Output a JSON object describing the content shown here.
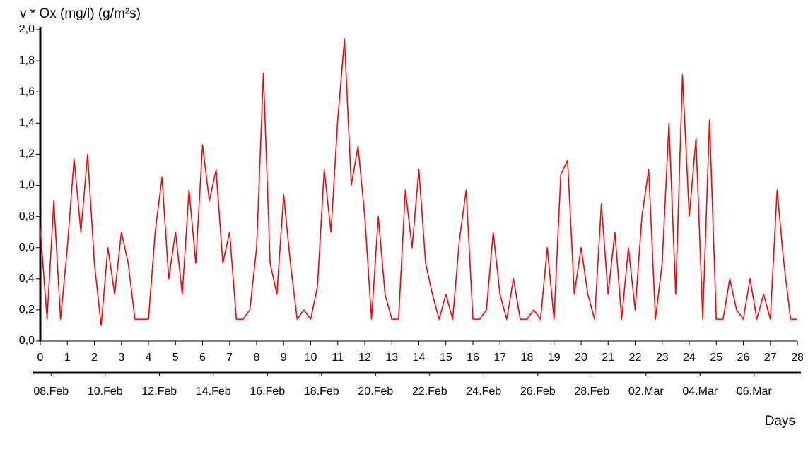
{
  "chart_data": {
    "type": "line",
    "y_label": "v * Ox (mg/l) (g/m²s)",
    "x_label": "Days",
    "xlim": [
      0,
      28
    ],
    "xticks": [
      0,
      1,
      2,
      3,
      4,
      5,
      6,
      7,
      8,
      9,
      10,
      11,
      12,
      13,
      14,
      15,
      16,
      17,
      18,
      19,
      20,
      21,
      22,
      23,
      24,
      25,
      26,
      27,
      28
    ],
    "ylim": [
      0,
      2.0
    ],
    "yticks": [
      {
        "value": 0,
        "label": "0,0"
      },
      {
        "value": 0.2,
        "label": "0,2"
      },
      {
        "value": 0.4,
        "label": "0,4"
      },
      {
        "value": 0.6,
        "label": "0,6"
      },
      {
        "value": 0.8,
        "label": "0,8"
      },
      {
        "value": 1.0,
        "label": "1,0"
      },
      {
        "value": 1.2,
        "label": "1,2"
      },
      {
        "value": 1.4,
        "label": "1,4"
      },
      {
        "value": 1.6,
        "label": "1,6"
      },
      {
        "value": 1.8,
        "label": "1,8"
      },
      {
        "value": 2.0,
        "label": "2,0"
      }
    ],
    "date_ticks": [
      {
        "value": 0.4,
        "label": "08.Feb"
      },
      {
        "value": 2.4,
        "label": "10.Feb"
      },
      {
        "value": 4.4,
        "label": "12.Feb"
      },
      {
        "value": 6.4,
        "label": "14.Feb"
      },
      {
        "value": 8.4,
        "label": "16.Feb"
      },
      {
        "value": 10.4,
        "label": "18.Feb"
      },
      {
        "value": 12.4,
        "label": "20.Feb"
      },
      {
        "value": 14.4,
        "label": "22.Feb"
      },
      {
        "value": 16.4,
        "label": "24.Feb"
      },
      {
        "value": 18.4,
        "label": "26.Feb"
      },
      {
        "value": 20.4,
        "label": "28.Feb"
      },
      {
        "value": 22.4,
        "label": "02.Mar"
      },
      {
        "value": 24.4,
        "label": "04.Mar"
      },
      {
        "value": 26.4,
        "label": "06.Mar"
      }
    ],
    "series": [
      {
        "color": "#ff0000",
        "x": [
          0,
          0.25,
          0.5,
          0.75,
          1,
          1.25,
          1.5,
          1.75,
          2,
          2.25,
          2.5,
          2.75,
          3,
          3.25,
          3.5,
          3.75,
          4,
          4.25,
          4.5,
          4.75,
          5,
          5.25,
          5.5,
          5.75,
          6,
          6.25,
          6.5,
          6.75,
          7,
          7.25,
          7.5,
          7.75,
          8,
          8.25,
          8.5,
          8.75,
          9,
          9.25,
          9.5,
          9.75,
          10,
          10.25,
          10.5,
          10.75,
          11,
          11.25,
          11.5,
          11.75,
          12,
          12.25,
          12.5,
          12.75,
          13,
          13.25,
          13.5,
          13.75,
          14,
          14.25,
          14.5,
          14.75,
          15,
          15.25,
          15.5,
          15.75,
          16,
          16.25,
          16.5,
          16.75,
          17,
          17.25,
          17.5,
          17.75,
          18,
          18.25,
          18.5,
          18.75,
          19,
          19.25,
          19.5,
          19.75,
          20,
          20.25,
          20.5,
          20.75,
          21,
          21.25,
          21.5,
          21.75,
          22,
          22.25,
          22.5,
          22.75,
          23,
          23.25,
          23.5,
          23.75,
          24,
          24.25,
          24.5,
          24.75,
          25,
          25.25,
          25.5,
          25.75,
          26,
          26.25,
          26.5,
          26.75,
          27,
          27.25,
          27.5,
          27.75,
          28
        ],
        "values": [
          0.72,
          0.14,
          0.9,
          0.14,
          0.6,
          1.17,
          0.7,
          1.2,
          0.5,
          0.1,
          0.6,
          0.3,
          0.7,
          0.5,
          0.14,
          0.14,
          0.14,
          0.7,
          1.05,
          0.4,
          0.7,
          0.3,
          0.97,
          0.5,
          1.26,
          0.9,
          1.1,
          0.5,
          0.7,
          0.14,
          0.14,
          0.2,
          0.6,
          1.72,
          0.5,
          0.3,
          0.94,
          0.5,
          0.14,
          0.2,
          0.14,
          0.35,
          1.1,
          0.7,
          1.42,
          1.94,
          1.0,
          1.25,
          0.8,
          0.14,
          0.8,
          0.3,
          0.14,
          0.14,
          0.97,
          0.6,
          1.1,
          0.5,
          0.3,
          0.14,
          0.3,
          0.14,
          0.65,
          0.97,
          0.14,
          0.14,
          0.2,
          0.7,
          0.3,
          0.14,
          0.4,
          0.14,
          0.14,
          0.2,
          0.14,
          0.6,
          0.14,
          1.07,
          1.16,
          0.3,
          0.6,
          0.3,
          0.14,
          0.88,
          0.3,
          0.7,
          0.14,
          0.6,
          0.2,
          0.8,
          1.1,
          0.14,
          0.5,
          1.4,
          0.3,
          1.71,
          0.8,
          1.3,
          0.14,
          1.42,
          0.14,
          0.14,
          0.4,
          0.2,
          0.14,
          0.4,
          0.14,
          0.3,
          0.14,
          0.97,
          0.5,
          0.14,
          0.14
        ]
      }
    ]
  }
}
